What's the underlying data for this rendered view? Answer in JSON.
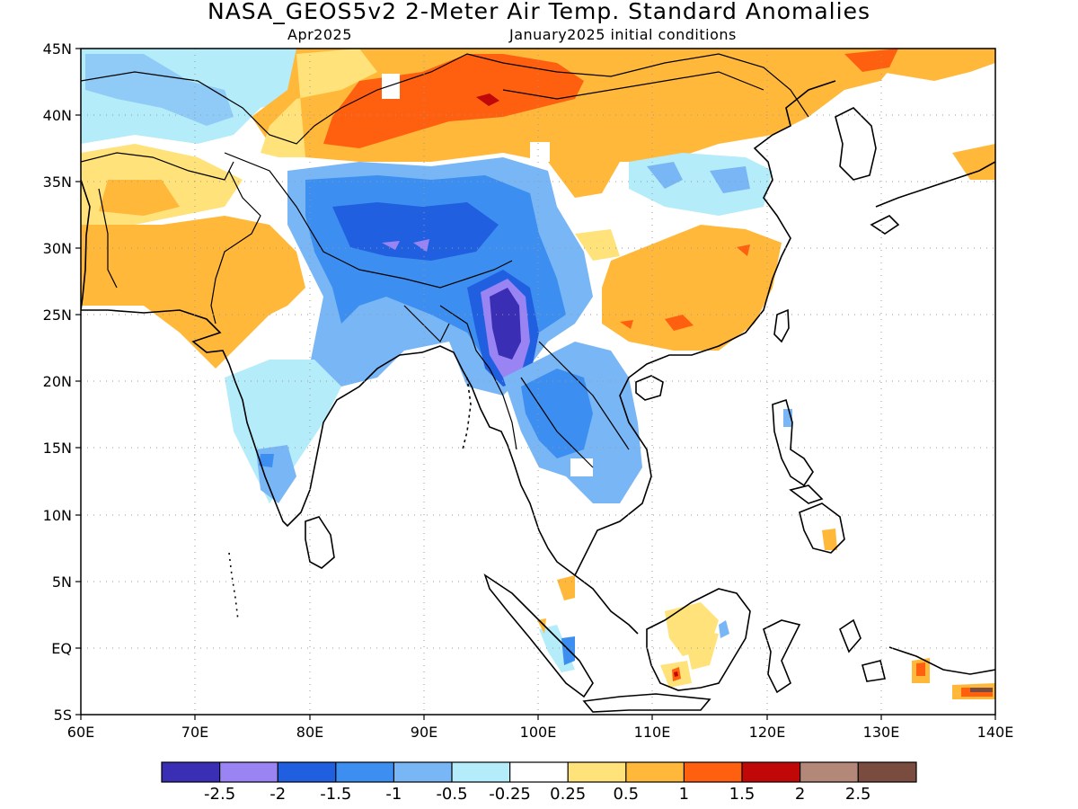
{
  "title": "NASA_GEOS5v2 2-Meter Air Temp. Standard Anomalies",
  "subtitle_left": "Apr2025",
  "subtitle_right": "January2025 initial conditions",
  "map_extent": {
    "lon": [
      60,
      140
    ],
    "lat": [
      -5,
      45
    ]
  },
  "lon_ticks": [
    "60E",
    "70E",
    "80E",
    "90E",
    "100E",
    "110E",
    "120E",
    "130E",
    "140E"
  ],
  "lat_ticks": [
    "45N",
    "40N",
    "35N",
    "30N",
    "25N",
    "20N",
    "15N",
    "10N",
    "5N",
    "EQ",
    "5S"
  ],
  "legend": {
    "colors": [
      "#3a2fb4",
      "#9a84f4",
      "#2060e0",
      "#3c8ff0",
      "#78b6f6",
      "#b4ecfa",
      "#ffffff",
      "#ffe27a",
      "#ffb83a",
      "#ff6010",
      "#c00808",
      "#b48878",
      "#7a4c40"
    ],
    "labels": [
      "-2.5",
      "-2",
      "-1.5",
      "-1",
      "-0.5",
      "-0.25",
      "0.25",
      "0.5",
      "1",
      "1.5",
      "2",
      "2.5"
    ]
  },
  "anomaly_regions": [
    {
      "name": "northwest-china-mongolia",
      "category": "1",
      "color": "#ffb83a"
    },
    {
      "name": "tarim-mongolia-core",
      "category": "1.5",
      "color": "#ff6010"
    },
    {
      "name": "tibet-plateau",
      "category": "-1",
      "color": "#3c8ff0"
    },
    {
      "name": "yunnan-myanmar",
      "category": "-2.5",
      "color": "#3a2fb4"
    },
    {
      "name": "south-china",
      "category": "1",
      "color": "#ffb83a"
    },
    {
      "name": "india-northwest",
      "category": "1",
      "color": "#ffb83a"
    },
    {
      "name": "indochina",
      "category": "-0.5",
      "color": "#78b6f6"
    }
  ]
}
